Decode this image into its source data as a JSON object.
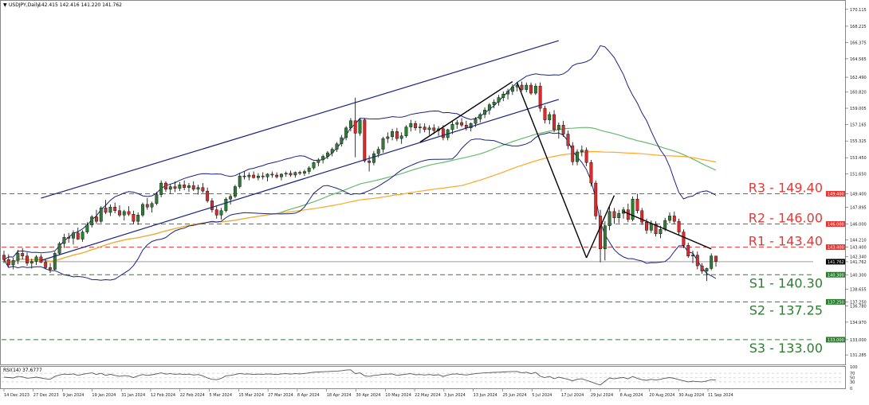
{
  "header": {
    "symbol": "USDJPY,Daily",
    "ohlc": "142.415 142.416 141.220 141.762"
  },
  "rsi_header": "RSI(14) 37.6777",
  "colors": {
    "up": "#2e7d32",
    "down": "#d32f2f",
    "bollinger": "#1a237e",
    "channel": "#1a237e",
    "trend": "#000000",
    "ma_green": "#66bb6a",
    "ma_orange": "#ffa726",
    "resistance": "#e53935",
    "support": "#2e7d32",
    "last_price": "#9e9e9e",
    "rsi": "#555555"
  },
  "price_axis_ticks": [
    "170.115",
    "168.225",
    "166.375",
    "164.565",
    "162.490",
    "160.820",
    "159.005",
    "157.165",
    "155.325",
    "153.450",
    "151.650",
    "149.400",
    "147.895",
    "146.000",
    "144.210",
    "143.400",
    "142.340",
    "141.762",
    "140.300",
    "138.655",
    "137.250",
    "136.780",
    "134.970",
    "133.000",
    "131.285"
  ],
  "levels": [
    {
      "id": "R3",
      "label": "R3 - 149.40",
      "value": 149.4,
      "kind": "resistance",
      "tag": "149.400"
    },
    {
      "id": "R2",
      "label": "R2 - 146.00",
      "value": 146.0,
      "kind": "resistance",
      "tag": "146.000"
    },
    {
      "id": "R1",
      "label": "R1 - 143.40",
      "value": 143.4,
      "kind": "resistance",
      "tag": "143.400"
    },
    {
      "id": "S1",
      "label": "S1 - 140.30",
      "value": 140.3,
      "kind": "support",
      "tag": "140.300"
    },
    {
      "id": "S2",
      "label": "S2 - 137.25",
      "value": 137.25,
      "kind": "support",
      "tag": "137.250"
    },
    {
      "id": "S3",
      "label": "S3 - 133.00",
      "value": 133.0,
      "kind": "support",
      "tag": "133.000"
    }
  ],
  "last_price": {
    "value": 141.762,
    "tag": "141.762"
  },
  "rsi_axis_ticks": [
    "100",
    "70",
    "50",
    "30",
    "0"
  ],
  "x_axis_labels": [
    "14 Dec 2023",
    "27 Dec 2023",
    "9 Jan 2024",
    "19 Jan 2024",
    "31 Jan 2024",
    "12 Feb 2024",
    "22 Feb 2024",
    "5 Mar 2024",
    "15 Mar 2024",
    "27 Mar 2024",
    "8 Apr 2024",
    "18 Apr 2024",
    "30 Apr 2024",
    "10 May 2024",
    "22 May 2024",
    "3 Jun 2024",
    "13 Jun 2024",
    "25 Jun 2024",
    "5 Jul 2024",
    "17 Jul 2024",
    "29 Jul 2024",
    "8 Aug 2024",
    "20 Aug 2024",
    "30 Aug 2024",
    "11 Sep 2024"
  ],
  "chart_data": {
    "type": "candlestick",
    "title": "USDJPY,Daily",
    "ylim": [
      130.4,
      170.9
    ],
    "rsi_ylim": [
      0,
      100
    ],
    "candles": [
      [
        142.5,
        143.0,
        141.6,
        142.0
      ],
      [
        142.0,
        142.6,
        141.2,
        141.4
      ],
      [
        141.4,
        142.2,
        140.9,
        141.9
      ],
      [
        141.9,
        143.1,
        141.5,
        142.7
      ],
      [
        142.7,
        143.3,
        142.0,
        142.4
      ],
      [
        142.4,
        142.8,
        141.3,
        141.6
      ],
      [
        141.6,
        142.1,
        141.0,
        141.8
      ],
      [
        141.8,
        142.5,
        141.4,
        142.3
      ],
      [
        142.3,
        142.6,
        141.6,
        141.7
      ],
      [
        141.7,
        142.0,
        140.9,
        141.1
      ],
      [
        141.1,
        141.6,
        140.5,
        140.9
      ],
      [
        140.9,
        142.9,
        140.8,
        142.7
      ],
      [
        142.7,
        144.0,
        142.5,
        143.8
      ],
      [
        143.8,
        144.9,
        143.3,
        144.5
      ],
      [
        144.5,
        145.0,
        143.9,
        144.4
      ],
      [
        144.4,
        145.3,
        143.7,
        145.0
      ],
      [
        145.0,
        145.6,
        144.2,
        144.3
      ],
      [
        144.3,
        145.3,
        144.0,
        145.1
      ],
      [
        145.1,
        146.2,
        144.9,
        145.9
      ],
      [
        145.9,
        147.0,
        145.6,
        146.8
      ],
      [
        146.8,
        147.6,
        146.0,
        146.3
      ],
      [
        146.3,
        148.0,
        146.1,
        147.8
      ],
      [
        147.8,
        148.7,
        147.1,
        147.3
      ],
      [
        147.3,
        148.2,
        146.9,
        147.9
      ],
      [
        147.9,
        148.4,
        147.2,
        147.5
      ],
      [
        147.5,
        148.1,
        146.8,
        147.0
      ],
      [
        147.0,
        147.6,
        146.4,
        147.4
      ],
      [
        147.4,
        148.0,
        146.9,
        147.1
      ],
      [
        147.1,
        147.5,
        146.0,
        146.3
      ],
      [
        146.3,
        147.3,
        145.9,
        147.0
      ],
      [
        147.0,
        148.4,
        146.8,
        148.2
      ],
      [
        148.2,
        148.9,
        147.6,
        147.9
      ],
      [
        147.9,
        148.5,
        147.3,
        148.3
      ],
      [
        148.3,
        149.6,
        148.1,
        149.3
      ],
      [
        149.3,
        150.9,
        149.0,
        150.6
      ],
      [
        150.6,
        150.8,
        149.6,
        149.9
      ],
      [
        149.9,
        150.5,
        149.4,
        150.2
      ],
      [
        150.2,
        150.8,
        149.6,
        150.0
      ],
      [
        150.0,
        150.7,
        149.7,
        150.4
      ],
      [
        150.4,
        150.9,
        149.8,
        150.1
      ],
      [
        150.1,
        150.6,
        149.6,
        150.3
      ],
      [
        150.3,
        150.8,
        149.7,
        149.9
      ],
      [
        149.9,
        150.4,
        149.3,
        150.1
      ],
      [
        150.1,
        150.6,
        149.5,
        149.7
      ],
      [
        149.7,
        150.1,
        148.4,
        148.6
      ],
      [
        148.6,
        148.9,
        147.3,
        147.6
      ],
      [
        147.6,
        148.0,
        146.6,
        147.0
      ],
      [
        147.0,
        147.8,
        146.5,
        147.5
      ],
      [
        147.5,
        149.0,
        147.3,
        148.8
      ],
      [
        148.8,
        149.4,
        148.2,
        149.1
      ],
      [
        149.1,
        150.4,
        148.9,
        150.2
      ],
      [
        150.2,
        151.7,
        150.0,
        151.4
      ],
      [
        151.4,
        151.9,
        151.0,
        151.3
      ],
      [
        151.3,
        151.8,
        150.9,
        151.5
      ],
      [
        151.5,
        151.9,
        151.1,
        151.2
      ],
      [
        151.2,
        151.7,
        150.9,
        151.4
      ],
      [
        151.4,
        151.8,
        151.0,
        151.3
      ],
      [
        151.3,
        151.7,
        150.8,
        151.6
      ],
      [
        151.6,
        151.9,
        151.2,
        151.5
      ],
      [
        151.5,
        151.8,
        151.1,
        151.3
      ],
      [
        151.3,
        151.7,
        150.9,
        151.6
      ],
      [
        151.6,
        151.9,
        151.3,
        151.7
      ],
      [
        151.7,
        152.0,
        151.3,
        151.5
      ],
      [
        151.5,
        151.9,
        151.2,
        151.8
      ],
      [
        151.8,
        152.0,
        151.5,
        151.7
      ],
      [
        151.7,
        152.1,
        151.4,
        151.9
      ],
      [
        151.9,
        152.5,
        151.6,
        152.3
      ],
      [
        152.3,
        153.0,
        152.1,
        152.9
      ],
      [
        152.9,
        153.4,
        152.5,
        153.2
      ],
      [
        153.2,
        153.8,
        152.8,
        153.6
      ],
      [
        153.6,
        154.2,
        153.3,
        154.0
      ],
      [
        154.0,
        154.6,
        153.6,
        154.4
      ],
      [
        154.4,
        155.2,
        154.1,
        155.0
      ],
      [
        155.0,
        156.0,
        154.7,
        155.7
      ],
      [
        155.7,
        157.0,
        155.4,
        156.8
      ],
      [
        156.8,
        157.9,
        156.4,
        157.6
      ],
      [
        157.6,
        160.2,
        153.5,
        156.2
      ],
      [
        156.2,
        157.9,
        155.9,
        157.7
      ],
      [
        157.7,
        157.9,
        152.9,
        153.1
      ],
      [
        153.1,
        153.7,
        151.9,
        152.9
      ],
      [
        152.9,
        154.2,
        152.6,
        153.9
      ],
      [
        153.9,
        154.7,
        153.5,
        154.4
      ],
      [
        154.4,
        155.8,
        154.0,
        155.6
      ],
      [
        155.6,
        156.3,
        155.1,
        155.8
      ],
      [
        155.8,
        156.7,
        155.4,
        156.4
      ],
      [
        156.4,
        156.8,
        155.3,
        155.6
      ],
      [
        155.6,
        156.3,
        155.0,
        155.9
      ],
      [
        155.9,
        157.1,
        155.7,
        156.9
      ],
      [
        156.9,
        157.7,
        156.4,
        157.3
      ],
      [
        157.3,
        157.6,
        156.5,
        156.8
      ],
      [
        156.8,
        157.3,
        156.2,
        156.9
      ],
      [
        156.9,
        157.3,
        156.3,
        156.6
      ],
      [
        156.6,
        157.1,
        156.0,
        156.8
      ],
      [
        156.8,
        157.2,
        156.1,
        156.5
      ],
      [
        156.5,
        157.0,
        155.9,
        156.7
      ],
      [
        156.7,
        157.1,
        155.4,
        155.7
      ],
      [
        155.7,
        156.7,
        155.4,
        156.6
      ],
      [
        156.6,
        157.6,
        156.1,
        157.2
      ],
      [
        157.2,
        157.7,
        156.7,
        157.4
      ],
      [
        157.4,
        157.9,
        156.9,
        157.1
      ],
      [
        157.1,
        157.6,
        156.5,
        156.8
      ],
      [
        156.8,
        157.4,
        156.4,
        157.3
      ],
      [
        157.3,
        158.0,
        156.9,
        157.8
      ],
      [
        157.8,
        158.5,
        157.4,
        158.3
      ],
      [
        158.3,
        159.1,
        157.9,
        158.8
      ],
      [
        158.8,
        159.6,
        158.3,
        159.4
      ],
      [
        159.4,
        160.0,
        159.0,
        159.7
      ],
      [
        159.7,
        160.5,
        159.3,
        160.2
      ],
      [
        160.2,
        160.9,
        159.8,
        160.6
      ],
      [
        160.6,
        161.2,
        160.0,
        160.9
      ],
      [
        160.9,
        161.7,
        160.5,
        161.4
      ],
      [
        161.4,
        161.9,
        160.9,
        161.6
      ],
      [
        161.6,
        162.0,
        160.9,
        161.1
      ],
      [
        161.1,
        161.9,
        160.8,
        161.6
      ],
      [
        161.6,
        161.9,
        160.5,
        160.7
      ],
      [
        160.7,
        161.8,
        160.5,
        161.5
      ],
      [
        161.5,
        161.9,
        158.6,
        159.0
      ],
      [
        159.0,
        159.3,
        157.3,
        157.7
      ],
      [
        157.7,
        158.6,
        157.2,
        158.3
      ],
      [
        158.3,
        158.8,
        156.3,
        156.6
      ],
      [
        156.6,
        157.4,
        155.6,
        157.1
      ],
      [
        157.1,
        157.6,
        155.8,
        156.1
      ],
      [
        156.1,
        156.5,
        154.4,
        154.8
      ],
      [
        154.8,
        155.2,
        152.6,
        153.0
      ],
      [
        153.0,
        154.4,
        152.6,
        154.1
      ],
      [
        154.1,
        154.8,
        153.6,
        154.3
      ],
      [
        154.3,
        154.6,
        152.5,
        152.9
      ],
      [
        152.9,
        153.2,
        150.2,
        150.6
      ],
      [
        150.6,
        150.9,
        146.5,
        146.9
      ],
      [
        146.9,
        147.6,
        141.7,
        143.2
      ],
      [
        143.2,
        146.3,
        141.9,
        145.8
      ],
      [
        145.8,
        147.9,
        145.3,
        147.4
      ],
      [
        147.4,
        147.8,
        146.0,
        146.7
      ],
      [
        146.7,
        147.6,
        146.1,
        147.2
      ],
      [
        147.2,
        147.9,
        146.6,
        147.6
      ],
      [
        147.6,
        148.3,
        146.2,
        146.5
      ],
      [
        146.5,
        149.1,
        146.3,
        148.8
      ],
      [
        148.8,
        149.4,
        147.2,
        147.5
      ],
      [
        147.5,
        147.8,
        145.9,
        146.2
      ],
      [
        146.2,
        146.6,
        144.9,
        145.3
      ],
      [
        145.3,
        146.4,
        145.0,
        146.0
      ],
      [
        146.0,
        146.3,
        144.6,
        144.9
      ],
      [
        144.9,
        145.8,
        144.4,
        145.4
      ],
      [
        145.4,
        146.7,
        145.2,
        146.4
      ],
      [
        146.4,
        147.3,
        146.1,
        146.9
      ],
      [
        146.9,
        147.4,
        146.0,
        146.3
      ],
      [
        146.3,
        146.6,
        144.8,
        145.1
      ],
      [
        145.1,
        145.4,
        143.3,
        143.6
      ],
      [
        143.6,
        143.9,
        142.2,
        142.4
      ],
      [
        142.4,
        143.0,
        141.6,
        142.5
      ],
      [
        142.5,
        142.9,
        140.9,
        141.3
      ],
      [
        141.3,
        141.6,
        140.4,
        140.7
      ],
      [
        140.7,
        141.1,
        139.6,
        141.0
      ],
      [
        141.0,
        142.7,
        140.8,
        142.4
      ],
      [
        142.4,
        142.4,
        141.2,
        141.8
      ]
    ],
    "rsi": [
      52,
      50,
      48,
      55,
      53,
      47,
      49,
      52,
      48,
      44,
      42,
      55,
      62,
      66,
      64,
      67,
      60,
      65,
      69,
      72,
      64,
      70,
      60,
      65,
      60,
      56,
      59,
      57,
      50,
      58,
      64,
      60,
      63,
      67,
      72,
      66,
      68,
      65,
      67,
      64,
      66,
      62,
      64,
      58,
      48,
      42,
      40,
      46,
      58,
      60,
      64,
      69,
      66,
      67,
      64,
      66,
      65,
      67,
      66,
      64,
      67,
      68,
      66,
      68,
      67,
      69,
      72,
      75,
      76,
      77,
      78,
      79,
      80,
      82,
      85,
      86,
      68,
      72,
      58,
      55,
      60,
      62,
      65,
      66,
      67,
      60,
      63,
      66,
      68,
      63,
      64,
      62,
      64,
      61,
      63,
      55,
      62,
      66,
      67,
      64,
      62,
      65,
      68,
      70,
      72,
      73,
      74,
      75,
      76,
      77,
      78,
      78,
      72,
      75,
      68,
      74,
      56,
      50,
      55,
      45,
      52,
      47,
      42,
      35,
      42,
      44,
      37,
      30,
      22,
      15,
      33,
      48,
      44,
      48,
      50,
      44,
      55,
      46,
      40,
      37,
      42,
      38,
      42,
      47,
      50,
      46,
      40,
      35,
      30,
      33,
      31,
      30,
      34,
      40,
      38
    ]
  }
}
